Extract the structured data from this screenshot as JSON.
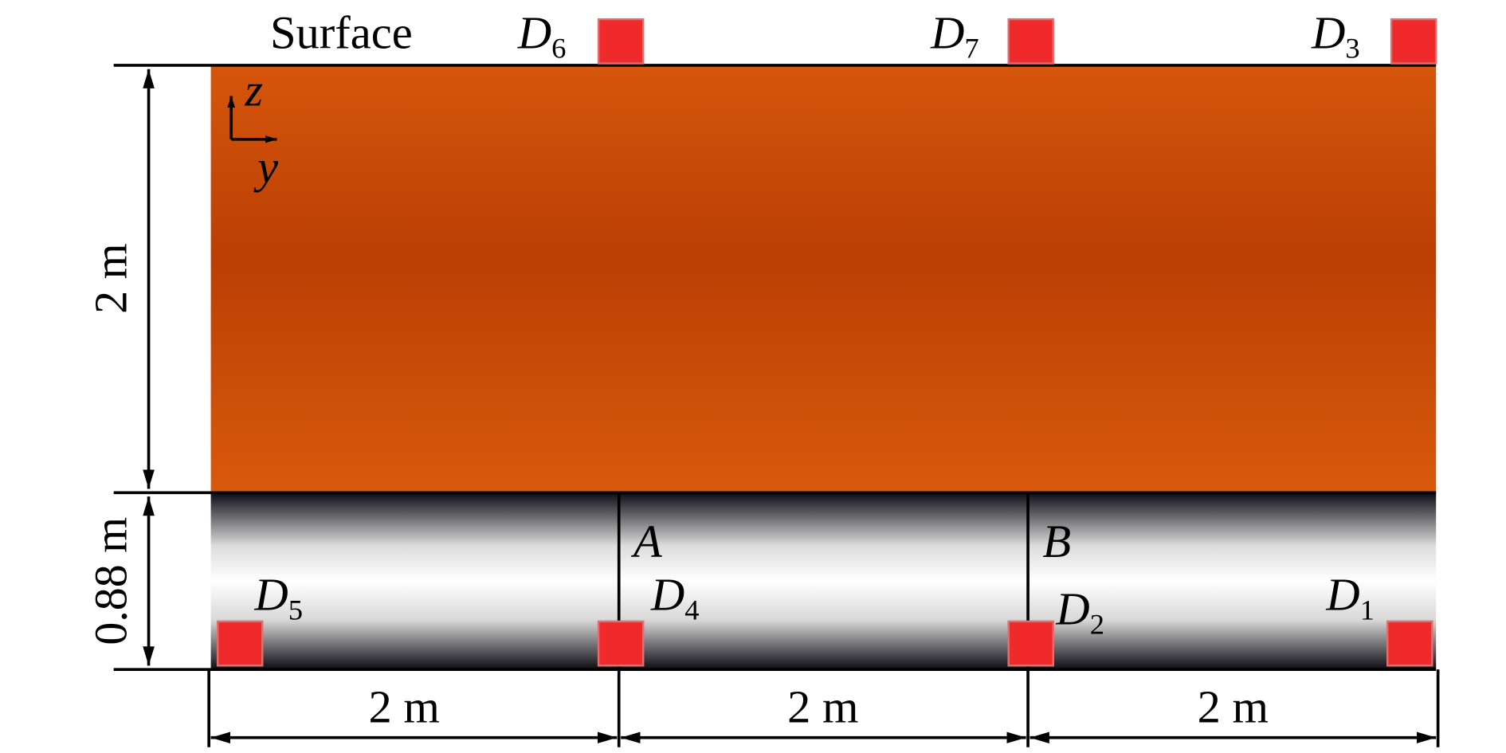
{
  "labels": {
    "surface": "Surface",
    "point_a": "A",
    "point_b": "B"
  },
  "axes": {
    "z": "z",
    "y": "y"
  },
  "dimensions": {
    "soil_height": "2 m",
    "tunnel_height": "0.88 m",
    "spans": [
      "2 m",
      "2 m",
      "2 m"
    ]
  },
  "sensors": [
    {
      "letter": "D",
      "index": "6"
    },
    {
      "letter": "D",
      "index": "7"
    },
    {
      "letter": "D",
      "index": "3"
    },
    {
      "letter": "D",
      "index": "5"
    },
    {
      "letter": "D",
      "index": "4"
    },
    {
      "letter": "D",
      "index": "2"
    },
    {
      "letter": "D",
      "index": "1"
    }
  ]
}
